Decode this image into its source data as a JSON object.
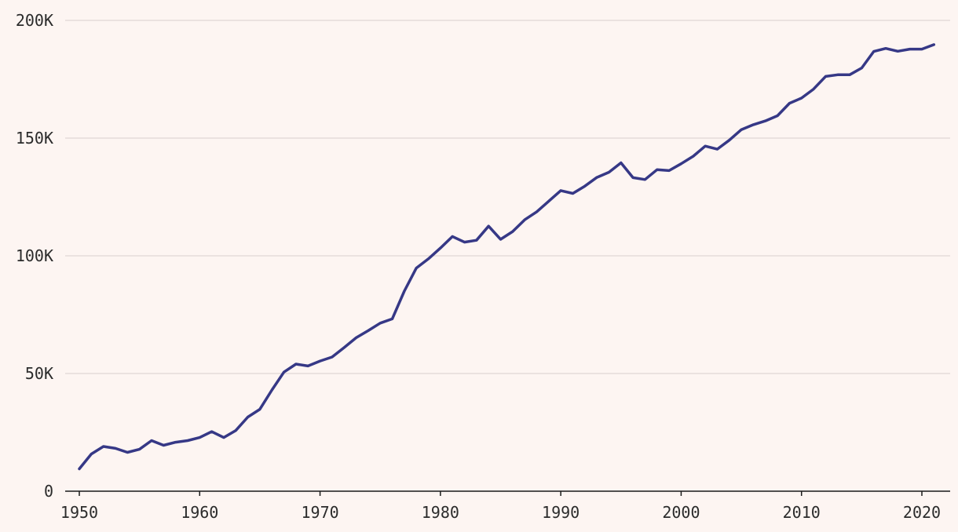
{
  "chart_data": {
    "type": "line",
    "title": "",
    "xlabel": "",
    "ylabel": "",
    "xlim": [
      1950,
      2021
    ],
    "ylim": [
      0,
      200000
    ],
    "grid": true,
    "y_ticks": [
      {
        "value": 0,
        "label": "0"
      },
      {
        "value": 50000,
        "label": "50K"
      },
      {
        "value": 100000,
        "label": "100K"
      },
      {
        "value": 150000,
        "label": "150K"
      },
      {
        "value": 200000,
        "label": "200K"
      }
    ],
    "x_ticks": [
      {
        "value": 1950,
        "label": "1950"
      },
      {
        "value": 1960,
        "label": "1960"
      },
      {
        "value": 1970,
        "label": "1970"
      },
      {
        "value": 1980,
        "label": "1980"
      },
      {
        "value": 1990,
        "label": "1990"
      },
      {
        "value": 2000,
        "label": "2000"
      },
      {
        "value": 2010,
        "label": "2010"
      },
      {
        "value": 2020,
        "label": "2020"
      }
    ],
    "x": [
      1950,
      1951,
      1952,
      1953,
      1954,
      1955,
      1956,
      1957,
      1958,
      1959,
      1960,
      1961,
      1962,
      1963,
      1964,
      1965,
      1966,
      1967,
      1968,
      1969,
      1970,
      1971,
      1972,
      1973,
      1974,
      1975,
      1976,
      1977,
      1978,
      1979,
      1980,
      1981,
      1982,
      1983,
      1984,
      1985,
      1986,
      1987,
      1988,
      1989,
      1990,
      1991,
      1992,
      1993,
      1994,
      1995,
      1996,
      1997,
      1998,
      1999,
      2000,
      2001,
      2002,
      2003,
      2004,
      2005,
      2006,
      2007,
      2008,
      2009,
      2010,
      2011,
      2012,
      2013,
      2014,
      2015,
      2016,
      2017,
      2018,
      2019,
      2020,
      2021
    ],
    "series": [
      {
        "color": "#363886",
        "values": [
          9500,
          15800,
          19000,
          18200,
          16500,
          17800,
          21500,
          19500,
          20800,
          21500,
          22800,
          25300,
          22800,
          25800,
          31500,
          34800,
          43000,
          50600,
          54000,
          53200,
          55300,
          57000,
          61000,
          65200,
          68200,
          71400,
          73200,
          85000,
          94800,
          98700,
          103300,
          108200,
          105800,
          106600,
          112600,
          107000,
          110300,
          115300,
          118700,
          123200,
          127700,
          126500,
          129600,
          133300,
          135500,
          139500,
          133200,
          132400,
          136600,
          136200,
          139100,
          142300,
          146600,
          145300,
          149100,
          153600,
          155700,
          157300,
          159500,
          164800,
          167000,
          170800,
          176200,
          176900,
          176900,
          179800,
          186800,
          188100,
          186900,
          187800,
          187800,
          189700
        ]
      }
    ]
  }
}
